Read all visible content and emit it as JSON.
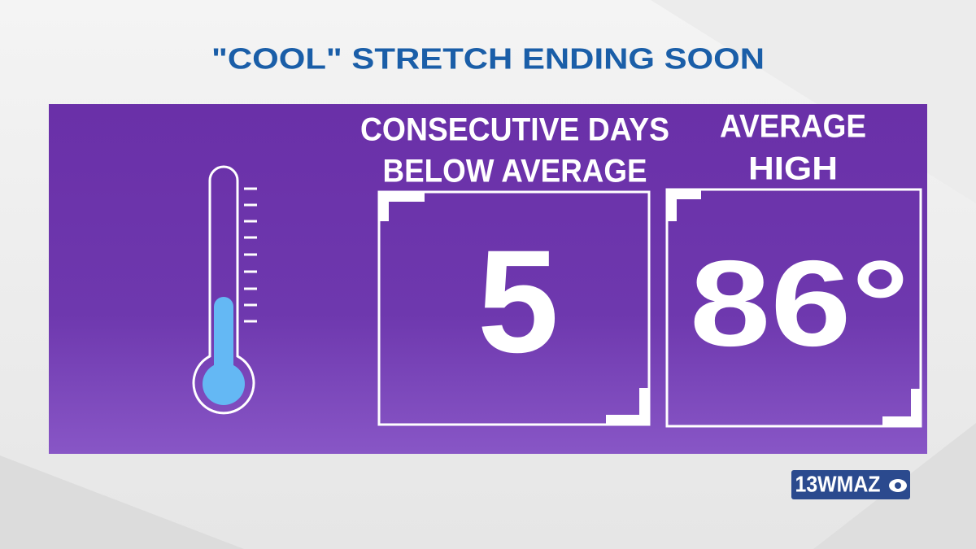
{
  "header": {
    "title": "\"COOL\" STRETCH ENDING SOON"
  },
  "panels": [
    {
      "label": [
        "CONSECUTIVE DAYS",
        "BELOW AVERAGE"
      ],
      "value": 5
    },
    {
      "label": [
        "AVERAGE",
        "HIGH"
      ],
      "value": "86°"
    }
  ],
  "logo": {
    "text": "13WMAZ"
  }
}
